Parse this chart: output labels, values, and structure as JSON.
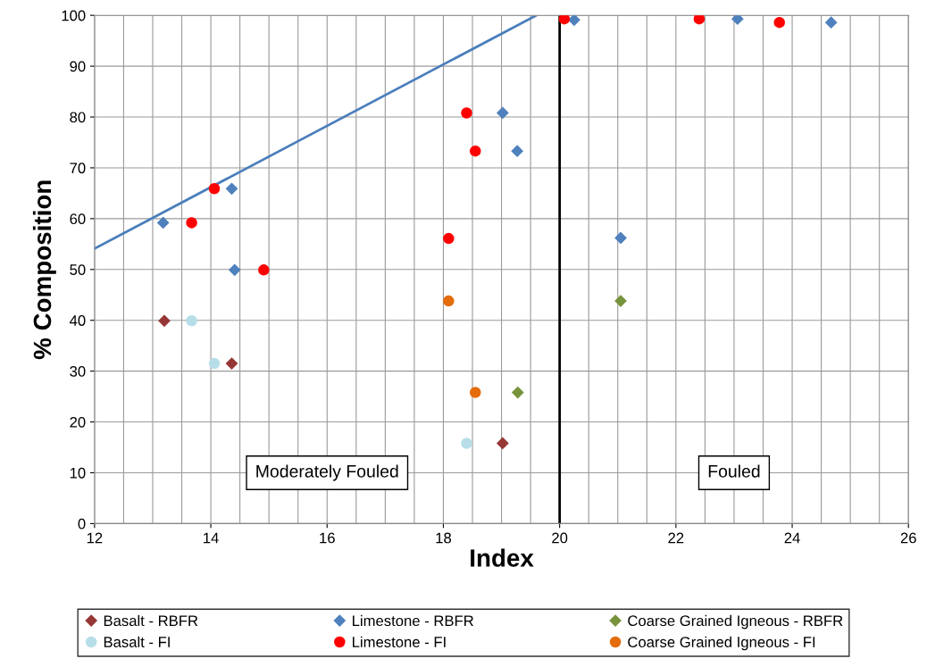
{
  "chart_data": {
    "type": "scatter",
    "xlabel": "Index",
    "ylabel": "% Composition",
    "xlim": [
      12,
      26
    ],
    "xticks": [
      12,
      14,
      16,
      18,
      20,
      22,
      24,
      26
    ],
    "ylim": [
      0,
      100
    ],
    "yticks": [
      0,
      10,
      20,
      30,
      40,
      50,
      60,
      70,
      80,
      90,
      100
    ],
    "grid": true,
    "legend": "bottom",
    "series": [
      {
        "name": "Basalt - RBFR",
        "color": "#953735",
        "marker": "diamond",
        "x": [
          13.2,
          14.36,
          19.02
        ],
        "values": [
          39.9,
          31.5,
          15.8
        ]
      },
      {
        "name": "Limestone - RBFR",
        "color": "#4f81bd",
        "marker": "diamond",
        "x": [
          13.18,
          14.36,
          14.41,
          19.02,
          19.27,
          20.25,
          21.05,
          23.06,
          24.67
        ],
        "values": [
          59.2,
          65.9,
          49.9,
          80.8,
          73.3,
          99.1,
          56.2,
          99.3,
          98.6
        ]
      },
      {
        "name": "Coarse Grained Igneous - RBFR",
        "color": "#77933c",
        "marker": "diamond",
        "x": [
          21.05,
          19.28
        ],
        "values": [
          43.8,
          25.8
        ]
      },
      {
        "name": "Basalt - FI",
        "color": "#b7dee8",
        "marker": "circle",
        "x": [
          13.67,
          14.06,
          18.4
        ],
        "values": [
          39.9,
          31.5,
          15.8
        ]
      },
      {
        "name": "Limestone - FI",
        "color": "#ff0000",
        "marker": "circle",
        "x": [
          13.67,
          14.06,
          14.91,
          18.4,
          18.55,
          18.09,
          20.08,
          22.4,
          23.78
        ],
        "values": [
          59.2,
          65.9,
          49.9,
          80.8,
          73.3,
          56.1,
          99.3,
          99.3,
          98.6
        ]
      },
      {
        "name": "Coarse Grained Igneous - FI",
        "color": "#e46c0a",
        "marker": "circle",
        "x": [
          18.09,
          18.55
        ],
        "values": [
          43.8,
          25.8
        ]
      },
      {
        "type": "line",
        "color": "#4a7ebb",
        "marker": "none",
        "x": [
          12,
          19.6
        ],
        "values": [
          54.1,
          100
        ]
      }
    ],
    "ref_lines": [
      {
        "axis": "x",
        "value": 20,
        "color": "#000000"
      }
    ],
    "annotations": [
      "Moderately Fouled",
      "Fouled"
    ]
  }
}
